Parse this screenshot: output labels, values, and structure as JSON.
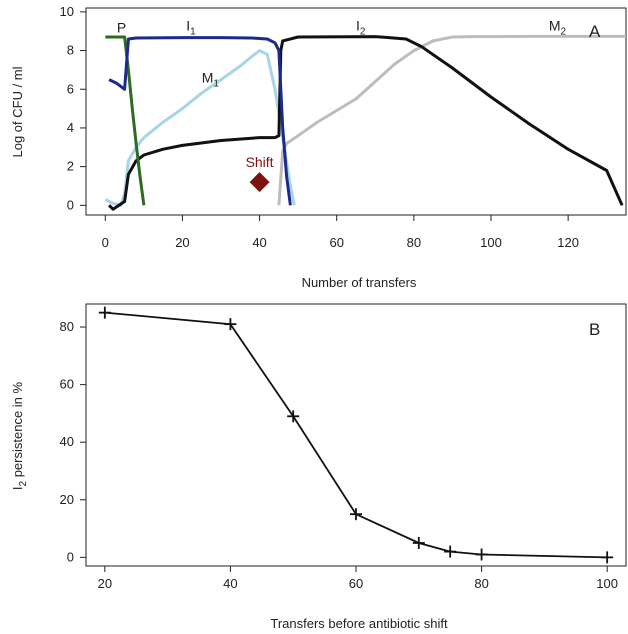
{
  "chart_data": [
    {
      "panel": "A",
      "type": "line",
      "xlabel": "Number of transfers",
      "ylabel": "Log of CFU / ml",
      "xlim": [
        -5,
        135
      ],
      "ylim": [
        0,
        10
      ],
      "xticks": [
        "0",
        "20",
        "40",
        "60",
        "80",
        "100",
        "120"
      ],
      "yticks": [
        "0",
        "2",
        "4",
        "6",
        "8",
        "10"
      ],
      "series": [
        {
          "name": "P",
          "label": "P",
          "label_sub": "",
          "color": "#2e6b1f",
          "points": [
            [
              0,
              8.7
            ],
            [
              5,
              8.7
            ],
            [
              6,
              7.0
            ],
            [
              7,
              5.0
            ],
            [
              8,
              3.2
            ],
            [
              9,
              1.5
            ],
            [
              10,
              0
            ]
          ]
        },
        {
          "name": "I1",
          "label": "I",
          "label_sub": "1",
          "color": "#1c2a8c",
          "points": [
            [
              1,
              6.5
            ],
            [
              3,
              6.3
            ],
            [
              5,
              6.0
            ],
            [
              6,
              8.6
            ],
            [
              8,
              8.65
            ],
            [
              20,
              8.67
            ],
            [
              30,
              8.67
            ],
            [
              38,
              8.65
            ],
            [
              42,
              8.6
            ],
            [
              44,
              8.4
            ],
            [
              45,
              8.0
            ],
            [
              46,
              4.0
            ],
            [
              47,
              1.5
            ],
            [
              48,
              0
            ]
          ]
        },
        {
          "name": "M1",
          "label": "M",
          "label_sub": "1",
          "color": "#a8d4ea",
          "points": [
            [
              0,
              0.3
            ],
            [
              2,
              0.1
            ],
            [
              4,
              0
            ],
            [
              5,
              0.6
            ],
            [
              6,
              2.3
            ],
            [
              8,
              3.0
            ],
            [
              10,
              3.5
            ],
            [
              15,
              4.3
            ],
            [
              20,
              5.0
            ],
            [
              25,
              5.8
            ],
            [
              30,
              6.5
            ],
            [
              35,
              7.2
            ],
            [
              38,
              7.7
            ],
            [
              40,
              8.0
            ],
            [
              42,
              7.8
            ],
            [
              44,
              6.0
            ],
            [
              46,
              3.5
            ],
            [
              48,
              1.0
            ],
            [
              49,
              0
            ]
          ]
        },
        {
          "name": "I2",
          "label": "I",
          "label_sub": "2",
          "color": "#111111",
          "points": [
            [
              1,
              0
            ],
            [
              2,
              -0.2
            ],
            [
              5,
              0.2
            ],
            [
              6,
              1.6
            ],
            [
              8,
              2.3
            ],
            [
              10,
              2.6
            ],
            [
              15,
              2.9
            ],
            [
              20,
              3.1
            ],
            [
              30,
              3.35
            ],
            [
              40,
              3.5
            ],
            [
              44,
              3.5
            ],
            [
              45,
              3.6
            ],
            [
              45.5,
              8.0
            ],
            [
              46,
              8.5
            ],
            [
              50,
              8.7
            ],
            [
              70,
              8.72
            ],
            [
              78,
              8.6
            ],
            [
              82,
              8.2
            ],
            [
              90,
              7.1
            ],
            [
              100,
              5.6
            ],
            [
              110,
              4.2
            ],
            [
              120,
              2.9
            ],
            [
              130,
              1.8
            ],
            [
              134,
              0
            ]
          ]
        },
        {
          "name": "M2",
          "label": "M",
          "label_sub": "2",
          "color": "#bdbdbd",
          "points": [
            [
              45,
              0
            ],
            [
              46,
              2.8
            ],
            [
              47,
              3.2
            ],
            [
              50,
              3.6
            ],
            [
              55,
              4.3
            ],
            [
              60,
              4.9
            ],
            [
              65,
              5.5
            ],
            [
              70,
              6.4
            ],
            [
              75,
              7.3
            ],
            [
              80,
              8.0
            ],
            [
              85,
              8.5
            ],
            [
              90,
              8.7
            ],
            [
              95,
              8.72
            ],
            [
              100,
              8.72
            ],
            [
              110,
              8.73
            ],
            [
              120,
              8.73
            ],
            [
              135,
              8.73
            ]
          ]
        }
      ],
      "series_label_positions_data": {
        "P": [
          3,
          9.2
        ],
        "I1": [
          21,
          9.3
        ],
        "M1": [
          25,
          6.6
        ],
        "I2": [
          65,
          9.3
        ],
        "M2": [
          115,
          9.3
        ]
      },
      "annotation": {
        "text": "Shift",
        "marker": "diamond",
        "color": "#7b1111",
        "x": 40,
        "y": 1.2
      }
    },
    {
      "panel": "B",
      "type": "line",
      "xlabel": "Transfers before antibiotic shift",
      "ylabel_main": "I",
      "ylabel_sub": "2",
      "ylabel_rest": " persistence in %",
      "xlim": [
        17,
        103
      ],
      "ylim": [
        -3,
        88
      ],
      "xticks": [
        "20",
        "40",
        "60",
        "80",
        "100"
      ],
      "yticks": [
        "0",
        "20",
        "40",
        "60",
        "80"
      ],
      "marker": "plus",
      "color": "#111111",
      "x": [
        20,
        40,
        50,
        60,
        70,
        75,
        80,
        100
      ],
      "y": [
        85,
        81,
        49,
        15,
        5,
        2,
        1,
        0
      ]
    }
  ]
}
